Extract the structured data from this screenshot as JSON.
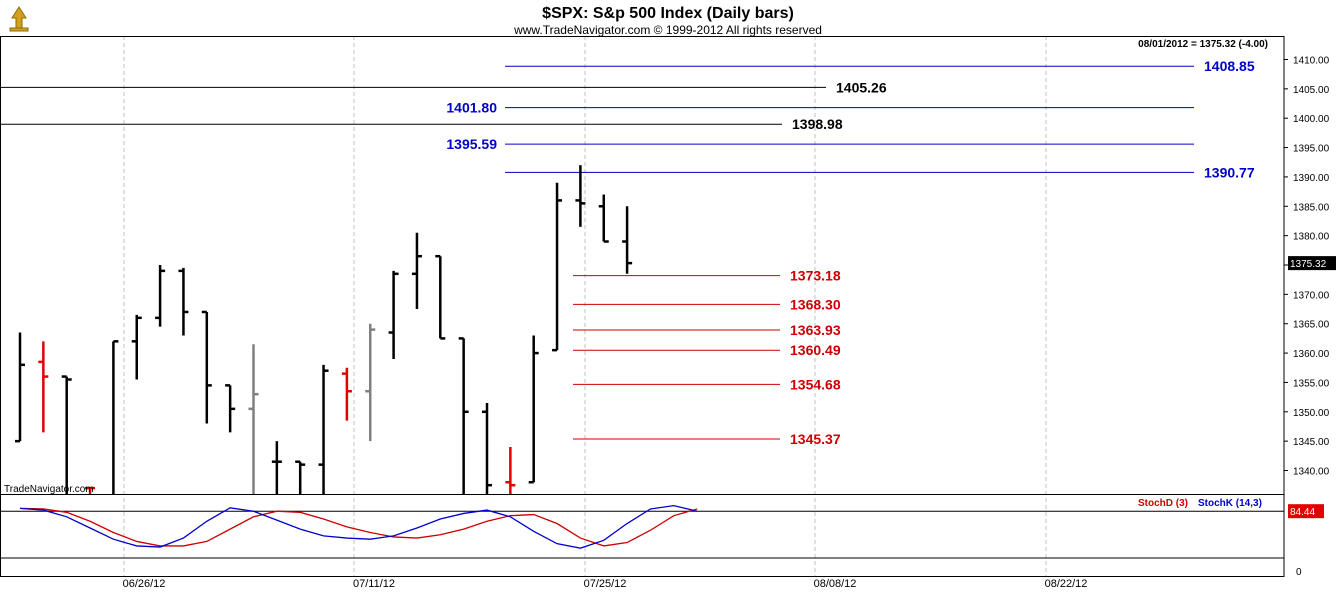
{
  "header": {
    "title": "$SPX:  S&p 500 Index  (Daily bars)",
    "copyright": "www.TradeNavigator.com © 1999-2012 All rights reserved",
    "info": "08/01/2012 = 1375.32 (-4.00)",
    "watermark": "TradeNavigator.com"
  },
  "chart_data": [
    {
      "type": "ohlc",
      "title": "$SPX:  S&p 500 Index  (Daily bars)",
      "ylim": [
        1336,
        1414
      ],
      "y_ticks": [
        1340,
        1345,
        1350,
        1355,
        1360,
        1365,
        1370,
        1375,
        1380,
        1385,
        1390,
        1395,
        1400,
        1405,
        1410
      ],
      "y_tick_labels": [
        "1340.00",
        "1345.00",
        "1350.00",
        "1355.00",
        "1360.00",
        "1365.00",
        "1370.00",
        "1375.00",
        "1380.00",
        "1385.00",
        "1390.00",
        "1395.00",
        "1400.00",
        "1405.00",
        "1410.00"
      ],
      "x_tick_labels": [
        "06/26/12",
        "07/11/12",
        "07/25/12",
        "08/08/12",
        "08/22/12"
      ],
      "last_price": "1375.32",
      "grid": true,
      "bars": [
        {
          "o": 1345,
          "h": 1363.5,
          "l": 1345,
          "c": 1358,
          "color": "#000000"
        },
        {
          "o": 1358.5,
          "h": 1362,
          "l": 1346.5,
          "c": 1356,
          "color": "#e00000"
        },
        {
          "o": 1356,
          "h": 1356,
          "l": 1336,
          "c": 1355.5,
          "color": "#000000"
        },
        {
          "o": 1337,
          "h": 1337,
          "l": 1336,
          "c": 1337,
          "color": "#e00000"
        },
        {
          "o": 1336,
          "h": 1362,
          "l": 1336,
          "c": 1362,
          "color": "#000000"
        },
        {
          "o": 1362,
          "h": 1366.5,
          "l": 1355.5,
          "c": 1366,
          "color": "#000000"
        },
        {
          "o": 1366,
          "h": 1375,
          "l": 1364.5,
          "c": 1374,
          "color": "#000000"
        },
        {
          "o": 1374,
          "h": 1374.5,
          "l": 1363,
          "c": 1367,
          "color": "#000000"
        },
        {
          "o": 1367,
          "h": 1367,
          "l": 1348,
          "c": 1354.5,
          "color": "#000000"
        },
        {
          "o": 1354.5,
          "h": 1354.5,
          "l": 1346.5,
          "c": 1350.5,
          "color": "#000000"
        },
        {
          "o": 1350.5,
          "h": 1361.5,
          "l": 1336,
          "c": 1353,
          "color": "#808080"
        },
        {
          "o": 1341.5,
          "h": 1345,
          "l": 1336,
          "c": 1341.5,
          "color": "#000000"
        },
        {
          "o": 1341.5,
          "h": 1341.5,
          "l": 1336,
          "c": 1341,
          "color": "#000000"
        },
        {
          "o": 1341,
          "h": 1358,
          "l": 1336,
          "c": 1357,
          "color": "#000000"
        },
        {
          "o": 1356.5,
          "h": 1357.5,
          "l": 1348.5,
          "c": 1353.5,
          "color": "#e00000"
        },
        {
          "o": 1353.5,
          "h": 1365,
          "l": 1345,
          "c": 1364,
          "color": "#808080"
        },
        {
          "o": 1363.5,
          "h": 1374,
          "l": 1359,
          "c": 1373.5,
          "color": "#000000"
        },
        {
          "o": 1373.5,
          "h": 1380.5,
          "l": 1367.5,
          "c": 1376.5,
          "color": "#000000"
        },
        {
          "o": 1376.5,
          "h": 1376.5,
          "l": 1362.5,
          "c": 1362.5,
          "color": "#000000"
        },
        {
          "o": 1362.5,
          "h": 1362.5,
          "l": 1336,
          "c": 1350,
          "color": "#000000"
        },
        {
          "o": 1350,
          "h": 1351.5,
          "l": 1336,
          "c": 1337.5,
          "color": "#000000"
        },
        {
          "o": 1338,
          "h": 1344,
          "l": 1336,
          "c": 1337.5,
          "color": "#e00000"
        },
        {
          "o": 1338,
          "h": 1363,
          "l": 1338,
          "c": 1360,
          "color": "#000000"
        },
        {
          "o": 1360.5,
          "h": 1389,
          "l": 1360.5,
          "c": 1386,
          "color": "#000000"
        },
        {
          "o": 1386,
          "h": 1392,
          "l": 1381.5,
          "c": 1385.5,
          "color": "#000000"
        },
        {
          "o": 1385,
          "h": 1387,
          "l": 1379,
          "c": 1379,
          "color": "#000000"
        },
        {
          "o": 1379,
          "h": 1385,
          "l": 1373.5,
          "c": 1375.32,
          "color": "#000000"
        }
      ]
    },
    {
      "type": "line",
      "series": [
        {
          "name": "StochD (3)",
          "color": "#cc0000",
          "values": [
            85,
            84,
            78,
            62,
            42,
            26,
            18,
            18,
            26,
            48,
            70,
            80,
            78,
            66,
            52,
            42,
            34,
            32,
            38,
            48,
            62,
            72,
            74,
            58,
            32,
            18,
            24,
            46,
            72,
            84
          ]
        },
        {
          "name": "StochK (14,3)",
          "color": "#0000cc",
          "values": [
            85,
            82,
            70,
            50,
            30,
            18,
            16,
            32,
            62,
            86,
            80,
            64,
            48,
            36,
            32,
            30,
            36,
            50,
            66,
            76,
            82,
            70,
            44,
            22,
            14,
            28,
            58,
            84,
            90,
            80
          ]
        }
      ],
      "ylim": [
        0,
        100
      ],
      "last_value": "84.44",
      "y_tick_label": "0"
    }
  ],
  "levels": [
    {
      "value": 1408.85,
      "label": "1408.85",
      "color": "#0000cc",
      "kind": "blue"
    },
    {
      "value": 1405.26,
      "label": "1405.26",
      "color": "#000000",
      "kind": "black"
    },
    {
      "value": 1401.8,
      "label": "1401.80",
      "color": "#0000cc",
      "kind": "blue"
    },
    {
      "value": 1398.98,
      "label": "1398.98",
      "color": "#000000",
      "kind": "black"
    },
    {
      "value": 1395.59,
      "label": "1395.59",
      "color": "#0000cc",
      "kind": "blue"
    },
    {
      "value": 1390.77,
      "label": "1390.77",
      "color": "#0000cc",
      "kind": "blue"
    },
    {
      "value": 1373.18,
      "label": "1373.18",
      "color": "#cc0000",
      "kind": "red"
    },
    {
      "value": 1368.3,
      "label": "1368.30",
      "color": "#cc0000",
      "kind": "red"
    },
    {
      "value": 1363.93,
      "label": "1363.93",
      "color": "#cc0000",
      "kind": "red"
    },
    {
      "value": 1360.49,
      "label": "1360.49",
      "color": "#cc0000",
      "kind": "red"
    },
    {
      "value": 1354.68,
      "label": "1354.68",
      "color": "#cc0000",
      "kind": "red"
    },
    {
      "value": 1345.37,
      "label": "1345.37",
      "color": "#cc0000",
      "kind": "red"
    }
  ]
}
